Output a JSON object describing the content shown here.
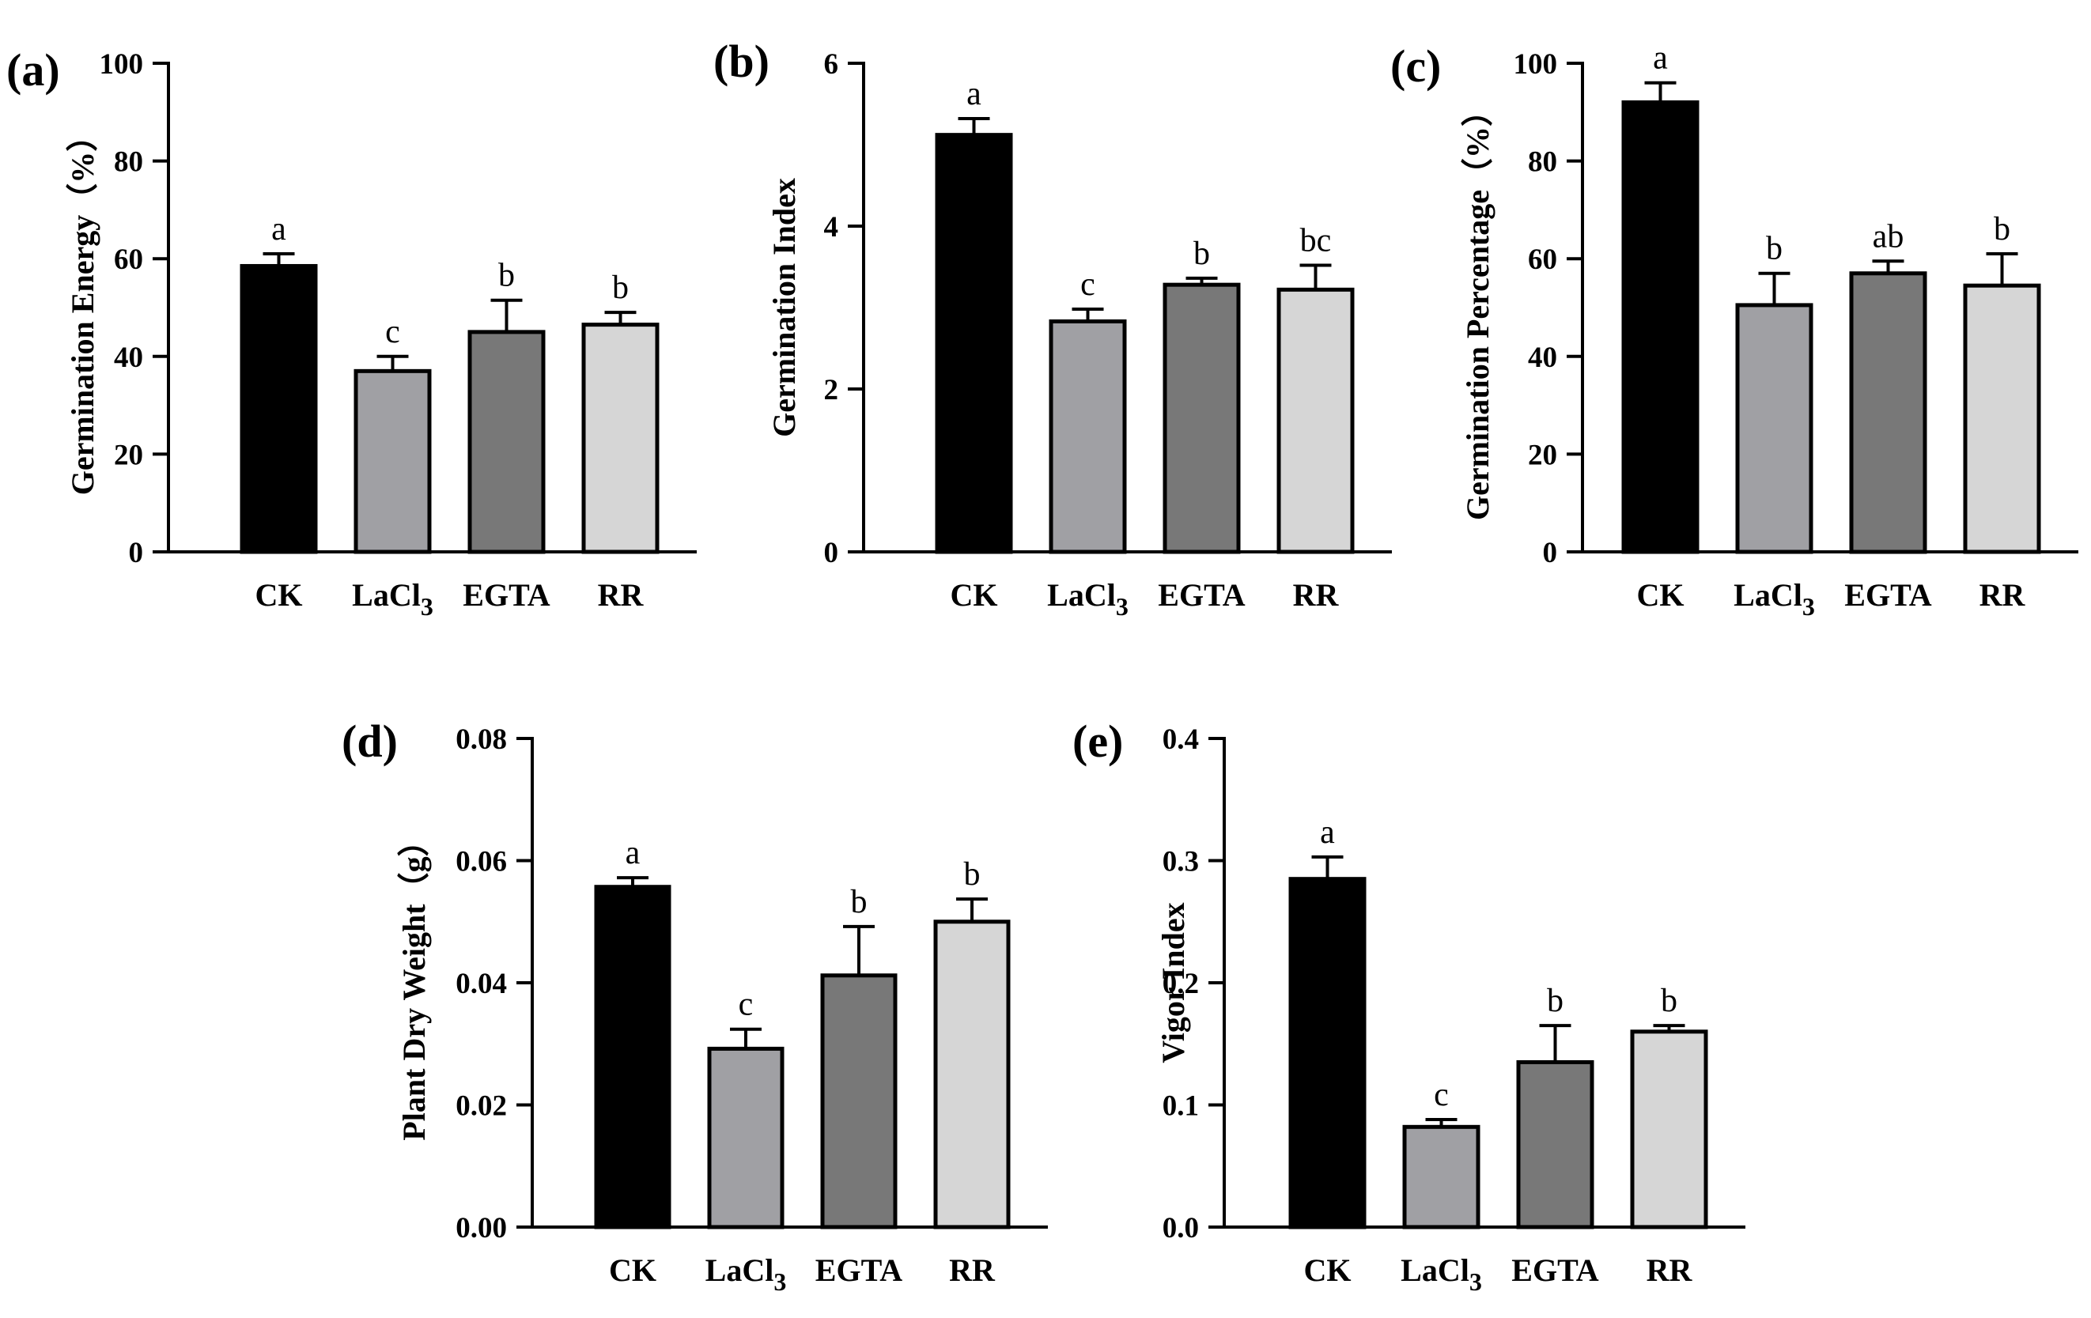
{
  "chart_data": [
    {
      "panel": "(a)",
      "type": "bar",
      "ylabel": "Germination Energy（%）",
      "categories": [
        {
          "main": "CK",
          "sub": ""
        },
        {
          "main": "LaCl",
          "sub": "3"
        },
        {
          "main": "EGTA",
          "sub": ""
        },
        {
          "main": "RR",
          "sub": ""
        }
      ],
      "values": [
        58.5,
        37,
        45,
        46.5
      ],
      "errors": [
        2.5,
        3,
        6.5,
        2.5
      ],
      "significance": [
        "a",
        "c",
        "b",
        "b"
      ],
      "colors": [
        "#000000",
        "#a0a0a4",
        "#787878",
        "#d6d6d6"
      ],
      "ylim": [
        0,
        100
      ],
      "yticks": [
        "0",
        "20",
        "40",
        "60",
        "80",
        "100"
      ]
    },
    {
      "panel": "(b)",
      "type": "bar",
      "ylabel": "Germination Index",
      "categories": [
        {
          "main": "CK",
          "sub": ""
        },
        {
          "main": "LaCl",
          "sub": "3"
        },
        {
          "main": "EGTA",
          "sub": ""
        },
        {
          "main": "RR",
          "sub": ""
        }
      ],
      "values": [
        5.12,
        2.83,
        3.28,
        3.22
      ],
      "errors": [
        0.2,
        0.15,
        0.08,
        0.3
      ],
      "significance": [
        "a",
        "c",
        "b",
        "bc"
      ],
      "colors": [
        "#000000",
        "#a0a0a4",
        "#787878",
        "#d6d6d6"
      ],
      "ylim": [
        0,
        6
      ],
      "yticks": [
        "0",
        "2",
        "4",
        "6"
      ]
    },
    {
      "panel": "(c)",
      "type": "bar",
      "ylabel": "Germination Percentage（%）",
      "categories": [
        {
          "main": "CK",
          "sub": ""
        },
        {
          "main": "LaCl",
          "sub": "3"
        },
        {
          "main": "EGTA",
          "sub": ""
        },
        {
          "main": "RR",
          "sub": ""
        }
      ],
      "values": [
        92,
        50.5,
        57,
        54.5
      ],
      "errors": [
        4,
        6.5,
        2.5,
        6.5
      ],
      "significance": [
        "a",
        "b",
        "ab",
        "b"
      ],
      "colors": [
        "#000000",
        "#a0a0a4",
        "#787878",
        "#d6d6d6"
      ],
      "ylim": [
        0,
        100
      ],
      "yticks": [
        "0",
        "20",
        "40",
        "60",
        "80",
        "100"
      ]
    },
    {
      "panel": "(d)",
      "type": "bar",
      "ylabel": "Plant Dry Weight（g）",
      "categories": [
        {
          "main": "CK",
          "sub": ""
        },
        {
          "main": "LaCl",
          "sub": "3"
        },
        {
          "main": "EGTA",
          "sub": ""
        },
        {
          "main": "RR",
          "sub": ""
        }
      ],
      "values": [
        0.0557,
        0.0292,
        0.0412,
        0.05
      ],
      "errors": [
        0.0015,
        0.0032,
        0.008,
        0.0037
      ],
      "significance": [
        "a",
        "c",
        "b",
        "b"
      ],
      "colors": [
        "#000000",
        "#a0a0a4",
        "#787878",
        "#d6d6d6"
      ],
      "ylim": [
        0,
        0.08
      ],
      "yticks": [
        "0.00",
        "0.02",
        "0.04",
        "0.06",
        "0.08"
      ]
    },
    {
      "panel": "(e)",
      "type": "bar",
      "ylabel": "Vigor Index",
      "categories": [
        {
          "main": "CK",
          "sub": ""
        },
        {
          "main": "LaCl",
          "sub": "3"
        },
        {
          "main": "EGTA",
          "sub": ""
        },
        {
          "main": "RR",
          "sub": ""
        }
      ],
      "values": [
        0.285,
        0.082,
        0.135,
        0.16
      ],
      "errors": [
        0.018,
        0.006,
        0.03,
        0.005
      ],
      "significance": [
        "a",
        "c",
        "b",
        "b"
      ],
      "colors": [
        "#000000",
        "#a0a0a4",
        "#787878",
        "#d6d6d6"
      ],
      "ylim": [
        0,
        0.4
      ],
      "yticks": [
        "0.0",
        "0.1",
        "0.2",
        "0.3",
        "0.4"
      ]
    }
  ]
}
